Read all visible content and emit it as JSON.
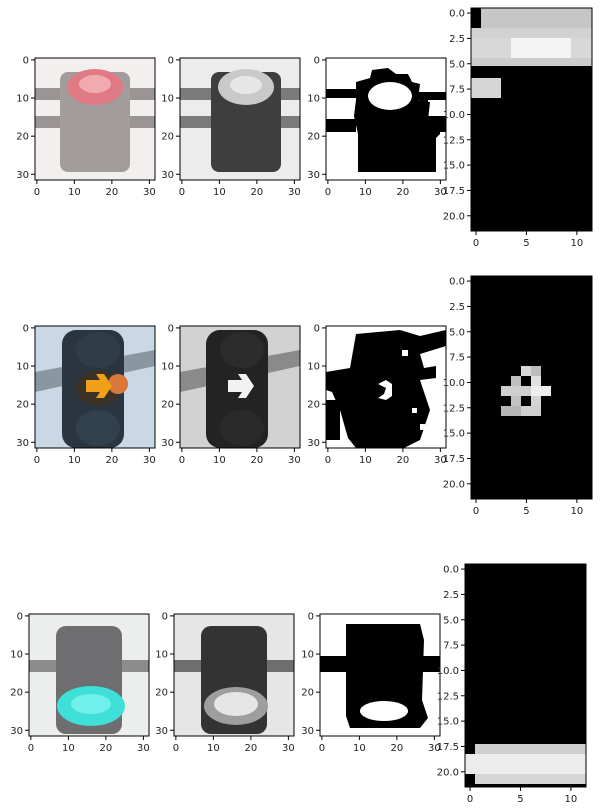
{
  "figure": {
    "description_free": true
  },
  "chart_data": [
    {
      "type": "heatmap",
      "row": 1,
      "panel": "rgb",
      "content": "red traffic light (top lamp lit)",
      "xticks": [
        "0",
        "10",
        "20",
        "30"
      ],
      "yticks": [
        "0",
        "10",
        "20",
        "30"
      ],
      "xlim": [
        0,
        31
      ],
      "ylim": [
        31,
        0
      ]
    },
    {
      "type": "heatmap",
      "row": 1,
      "panel": "grayscale",
      "xticks": [
        "0",
        "10",
        "20",
        "30"
      ],
      "yticks": [
        "0",
        "10",
        "20",
        "30"
      ],
      "xlim": [
        0,
        31
      ],
      "ylim": [
        31,
        0
      ]
    },
    {
      "type": "heatmap",
      "row": 1,
      "panel": "binary",
      "xticks": [
        "0",
        "10",
        "20",
        "30"
      ],
      "yticks": [
        "0",
        "10",
        "20",
        "30"
      ],
      "xlim": [
        0,
        31
      ],
      "ylim": [
        31,
        0
      ]
    },
    {
      "type": "heatmap",
      "row": 1,
      "panel": "crop",
      "xticks": [
        "0",
        "5",
        "10"
      ],
      "yticks": [
        "0.0",
        "2.5",
        "5.0",
        "7.5",
        "10.0",
        "12.5",
        "15.0",
        "17.5",
        "20.0"
      ],
      "xlim": [
        0,
        11
      ],
      "ylim": [
        21,
        0
      ],
      "bright_rows": [
        0,
        5
      ]
    },
    {
      "type": "heatmap",
      "row": 2,
      "panel": "rgb",
      "content": "traffic light with amber right arrow",
      "xticks": [
        "0",
        "10",
        "20",
        "30"
      ],
      "yticks": [
        "0",
        "10",
        "20",
        "30"
      ],
      "xlim": [
        0,
        31
      ],
      "ylim": [
        31,
        0
      ]
    },
    {
      "type": "heatmap",
      "row": 2,
      "panel": "grayscale",
      "xticks": [
        "0",
        "10",
        "20",
        "30"
      ],
      "yticks": [
        "0",
        "10",
        "20",
        "30"
      ],
      "xlim": [
        0,
        31
      ],
      "ylim": [
        31,
        0
      ]
    },
    {
      "type": "heatmap",
      "row": 2,
      "panel": "binary",
      "xticks": [
        "0",
        "10",
        "20",
        "30"
      ],
      "yticks": [
        "0",
        "10",
        "20",
        "30"
      ],
      "xlim": [
        0,
        31
      ],
      "ylim": [
        31,
        0
      ]
    },
    {
      "type": "heatmap",
      "row": 2,
      "panel": "crop",
      "xticks": [
        "0",
        "5",
        "10"
      ],
      "yticks": [
        "0.0",
        "2.5",
        "5.0",
        "7.5",
        "10.0",
        "12.5",
        "15.0",
        "17.5",
        "20.0"
      ],
      "xlim": [
        0,
        11
      ],
      "ylim": [
        21,
        0
      ],
      "bright_rows": [
        9,
        13
      ]
    },
    {
      "type": "heatmap",
      "row": 3,
      "panel": "rgb",
      "content": "green traffic light (bottom lamp lit)",
      "xticks": [
        "0",
        "10",
        "20",
        "30"
      ],
      "yticks": [
        "0",
        "10",
        "20",
        "30"
      ],
      "xlim": [
        0,
        31
      ],
      "ylim": [
        31,
        0
      ]
    },
    {
      "type": "heatmap",
      "row": 3,
      "panel": "grayscale",
      "xticks": [
        "0",
        "10",
        "20",
        "30"
      ],
      "yticks": [
        "0",
        "10",
        "20",
        "30"
      ],
      "xlim": [
        0,
        31
      ],
      "ylim": [
        31,
        0
      ]
    },
    {
      "type": "heatmap",
      "row": 3,
      "panel": "binary",
      "xticks": [
        "0",
        "10",
        "20",
        "30"
      ],
      "yticks": [
        "0",
        "10",
        "20",
        "30"
      ],
      "xlim": [
        0,
        31
      ],
      "ylim": [
        31,
        0
      ]
    },
    {
      "type": "heatmap",
      "row": 3,
      "panel": "crop",
      "xticks": [
        "0",
        "5",
        "10"
      ],
      "yticks": [
        "0.0",
        "2.5",
        "5.0",
        "7.5",
        "10.0",
        "12.5",
        "15.0",
        "17.5",
        "20.0"
      ],
      "xlim": [
        0,
        11
      ],
      "ylim": [
        21,
        0
      ],
      "bright_rows": [
        17,
        21
      ]
    }
  ],
  "colors": {
    "red_lamp": "#e07a84",
    "amber_arrow": "#f0a01a",
    "cyan_lamp": "#3fe0d8",
    "housing_gray": "#7a7a7a",
    "sky_blue": "#c9d8e4",
    "background_light": "#f2f2f2"
  }
}
